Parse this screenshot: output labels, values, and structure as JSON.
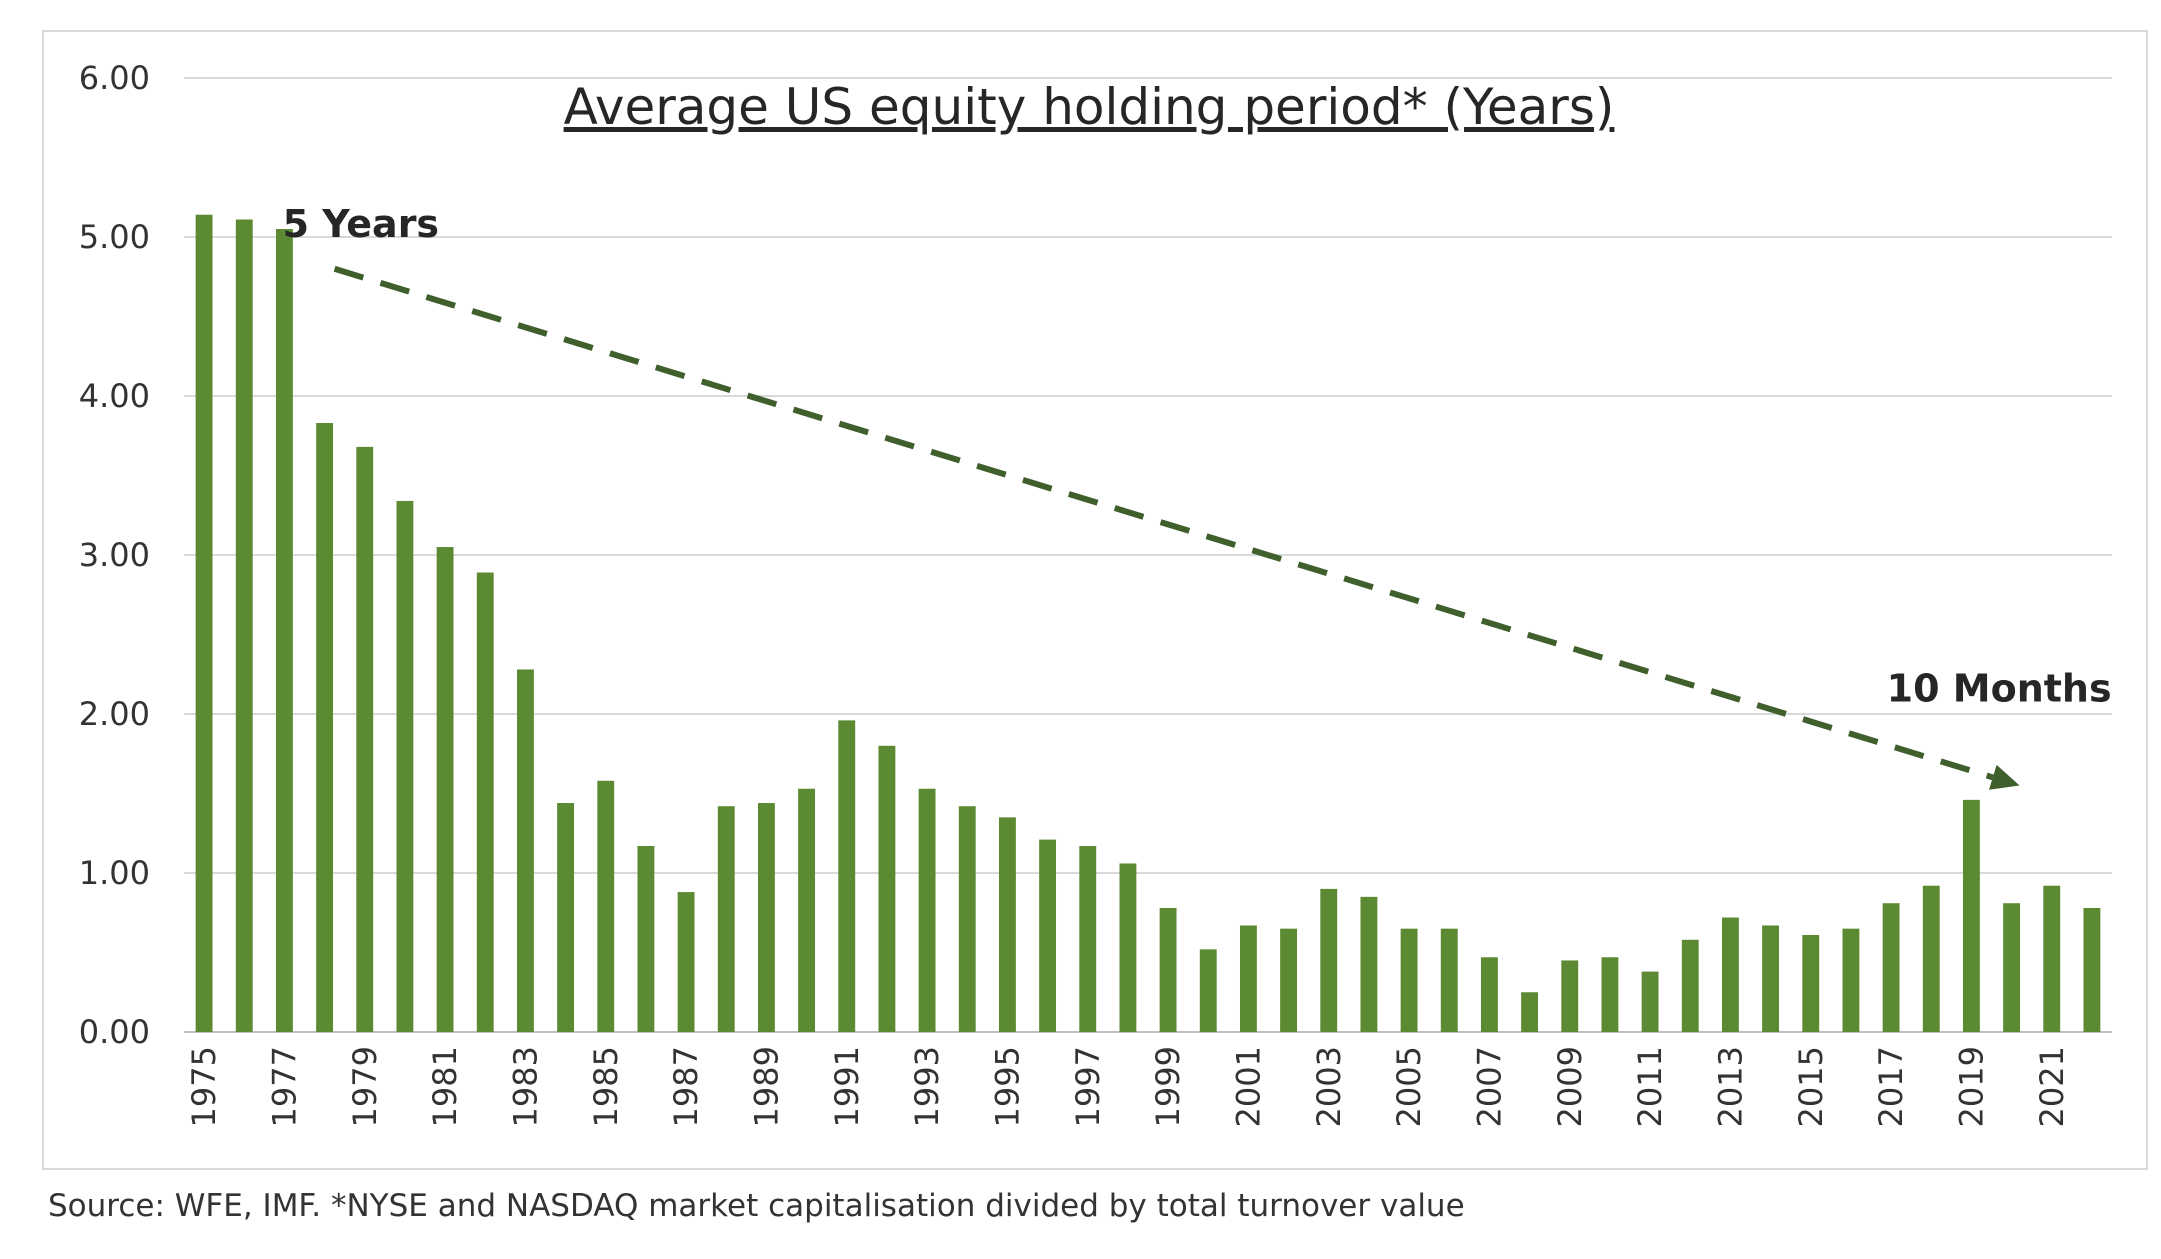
{
  "chart_data": {
    "type": "bar",
    "title": "Average US equity holding period* (Years)",
    "xlabel": "",
    "ylabel": "",
    "ylim": [
      0,
      6
    ],
    "yticks": [
      "0.00",
      "1.00",
      "2.00",
      "3.00",
      "4.00",
      "5.00",
      "6.00"
    ],
    "grid": true,
    "legend": "none",
    "bar_color": "#5b8a32",
    "categories": [
      "1975",
      "1976",
      "1977",
      "1978",
      "1979",
      "1980",
      "1981",
      "1982",
      "1983",
      "1984",
      "1985",
      "1986",
      "1987",
      "1988",
      "1989",
      "1990",
      "1991",
      "1992",
      "1993",
      "1994",
      "1995",
      "1996",
      "1997",
      "1998",
      "1999",
      "2000",
      "2001",
      "2002",
      "2003",
      "2004",
      "2005",
      "2006",
      "2007",
      "2008",
      "2009",
      "2010",
      "2011",
      "2012",
      "2013",
      "2014",
      "2015",
      "2016",
      "2017",
      "2018",
      "2019",
      "2020",
      "2021",
      "2022"
    ],
    "tick_labels": [
      "1975",
      "1977",
      "1979",
      "1981",
      "1983",
      "1985",
      "1987",
      "1989",
      "1991",
      "1993",
      "1995",
      "1997",
      "1999",
      "2001",
      "2003",
      "2005",
      "2007",
      "2009",
      "2011",
      "2013",
      "2015",
      "2017",
      "2019",
      "2021"
    ],
    "values": [
      5.14,
      5.11,
      5.05,
      3.83,
      3.68,
      3.34,
      3.05,
      2.89,
      2.28,
      1.44,
      1.58,
      1.17,
      0.88,
      1.42,
      1.44,
      1.53,
      1.96,
      1.8,
      1.53,
      1.42,
      1.35,
      1.21,
      1.17,
      1.06,
      0.78,
      0.52,
      0.67,
      0.65,
      0.9,
      0.85,
      0.65,
      0.65,
      0.47,
      0.25,
      0.45,
      0.47,
      0.38,
      0.58,
      0.72,
      0.67,
      0.61,
      0.65,
      0.81,
      0.92,
      1.46,
      0.81,
      0.92,
      0.78
    ],
    "annotations": [
      {
        "text": "5 Years",
        "anchor_x": "1978",
        "anchor_y": 5.1
      },
      {
        "text": "10 Months",
        "anchor_x": "2020",
        "anchor_y": 2.18
      }
    ],
    "trend_arrow": {
      "from": {
        "x": "1978",
        "y": 4.8
      },
      "to": {
        "x": "2020",
        "y": 1.55
      }
    }
  },
  "source_note": "Source: WFE, IMF. *NYSE and NASDAQ market capitalisation divided by total turnover value"
}
